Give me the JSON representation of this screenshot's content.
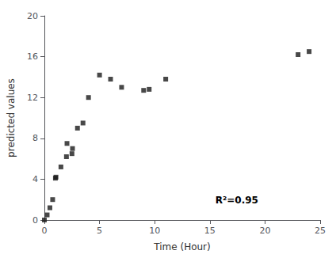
{
  "chart_data": {
    "type": "scatter",
    "x": [
      0.0,
      0.25,
      0.5,
      0.75,
      1.0,
      1.05,
      1.5,
      2.0,
      2.05,
      2.5,
      2.55,
      3.0,
      3.5,
      4.0,
      5.0,
      6.0,
      7.0,
      9.0,
      9.5,
      11.0,
      23.0,
      24.0
    ],
    "values": [
      0.0,
      0.5,
      1.2,
      2.0,
      4.1,
      4.2,
      5.2,
      6.2,
      7.5,
      6.5,
      7.0,
      9.0,
      9.5,
      12.0,
      14.2,
      13.8,
      13.0,
      12.7,
      12.8,
      13.8,
      16.2,
      16.5
    ],
    "color": "#1a1a1a",
    "marker": "square",
    "xlabel": "Time (Hour)",
    "ylabel": "predicted values",
    "xlim": [
      0,
      25
    ],
    "ylim": [
      0,
      20
    ],
    "xticks": [
      0,
      5,
      10,
      15,
      20,
      25
    ],
    "yticks": [
      0,
      4,
      8,
      12,
      16,
      20
    ],
    "annotations": [
      {
        "text": "R²=0.95",
        "x": 15.5,
        "y": 1.5
      }
    ],
    "grid": false
  }
}
